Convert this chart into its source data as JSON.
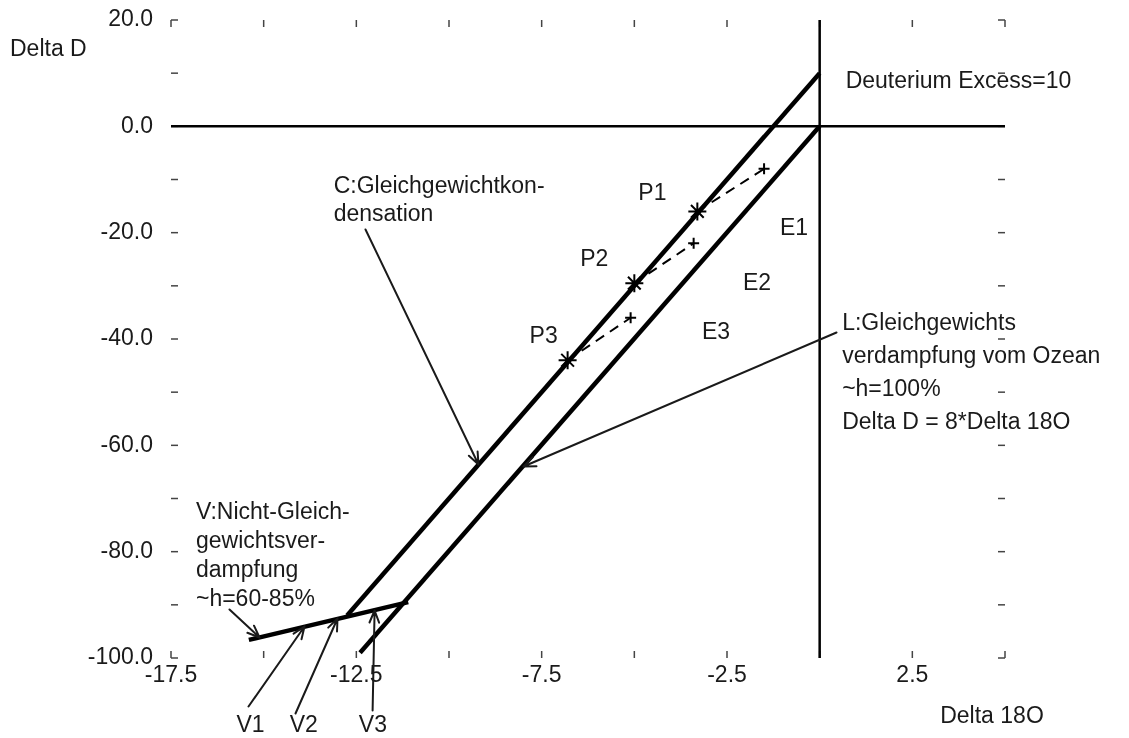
{
  "chart_data": {
    "type": "line",
    "xlabel": "Delta 18O",
    "ylabel": "Delta D",
    "xlim": [
      -17.5,
      5
    ],
    "ylim": [
      -100,
      20
    ],
    "xticks": [
      -17.5,
      {
        "value": -15,
        "label": null
      },
      -12.5,
      {
        "value": -10,
        "label": null
      },
      -7.5,
      {
        "value": -5,
        "label": null
      },
      -2.5,
      {
        "value": 0,
        "label": null
      },
      2.5,
      {
        "value": 5,
        "label": null
      }
    ],
    "yticks": [
      {
        "value": -100,
        "label": "-100.0"
      },
      {
        "value": -90,
        "label": null
      },
      {
        "value": -80,
        "label": "-80.0"
      },
      {
        "value": -70,
        "label": null
      },
      {
        "value": -60,
        "label": "-60.0"
      },
      {
        "value": -50,
        "label": null
      },
      {
        "value": -40,
        "label": "-40.0"
      },
      {
        "value": -30,
        "label": null
      },
      {
        "value": -20,
        "label": "-20.0"
      },
      {
        "value": -10,
        "label": null
      },
      {
        "value": 0,
        "label": "0.0"
      },
      {
        "value": 10,
        "label": null
      },
      {
        "value": 20,
        "label": "20.0"
      }
    ],
    "series": [
      {
        "color": "#000000",
        "x": [
          -17.5,
          5
        ],
        "values": [
          0,
          0
        ]
      },
      {
        "color": "#000000",
        "x": [
          0,
          0
        ],
        "values": [
          -100,
          20
        ]
      },
      {
        "color": "#000000",
        "x": [
          -12.75,
          0
        ],
        "values": [
          -92,
          10
        ]
      },
      {
        "color": "#000000",
        "x": [
          -12.4,
          0
        ],
        "values": [
          -99,
          0
        ]
      },
      {
        "color": "#000000",
        "x": [
          -15.4,
          -11.1
        ],
        "values": [
          -96.6,
          -89.5
        ]
      },
      {
        "color": "#000000",
        "line_style": "dashed",
        "x": [
          -6.8,
          -5.1
        ],
        "values": [
          -44,
          -36
        ]
      },
      {
        "color": "#000000",
        "line_style": "dashed",
        "x": [
          -5,
          -3.4
        ],
        "values": [
          -29.5,
          -22
        ]
      },
      {
        "color": "#000000",
        "line_style": "dashed",
        "x": [
          -3.3,
          -1.5
        ],
        "values": [
          -16,
          -8
        ]
      },
      {
        "type": "scatter",
        "color": "#000000",
        "marker": "cross",
        "x": [
          -6.8,
          -5,
          -3.3
        ],
        "values": [
          -44,
          -29.5,
          -16
        ]
      },
      {
        "type": "scatter",
        "color": "#000000",
        "marker": "cross",
        "x": [
          -5.1,
          -3.4,
          -1.5
        ],
        "values": [
          -36,
          -22,
          -8
        ]
      }
    ],
    "annotations": [
      {
        "text": "Deuterium Excess=10",
        "x": 0,
        "y": 10
      },
      {
        "text": "C:Gleichgewichtkon-\ndensation",
        "x": -9.2,
        "y": -63.6
      },
      {
        "text": "L:Gleichgewichts\nverdampfung vom Ozean\n~h=100%\nDelta D = 8*Delta 18O",
        "x": -8,
        "y": -64
      },
      {
        "text": "V:Nicht-Gleich-\ngewichtsver-\ndampfung\n~h=60-85%",
        "x": -15.1,
        "y": -96.1
      },
      {
        "text": "V1",
        "x": -13.9,
        "y": -94.1
      },
      {
        "text": "V2",
        "x": -13,
        "y": -92.6
      },
      {
        "text": "V3",
        "x": -12,
        "y": -91
      },
      {
        "text": "P1",
        "x": -3.3,
        "y": -16
      },
      {
        "text": "P2",
        "x": -5,
        "y": -29.5
      },
      {
        "text": "P3",
        "x": -6.8,
        "y": -44
      },
      "E1",
      "E2",
      "E3"
    ]
  }
}
